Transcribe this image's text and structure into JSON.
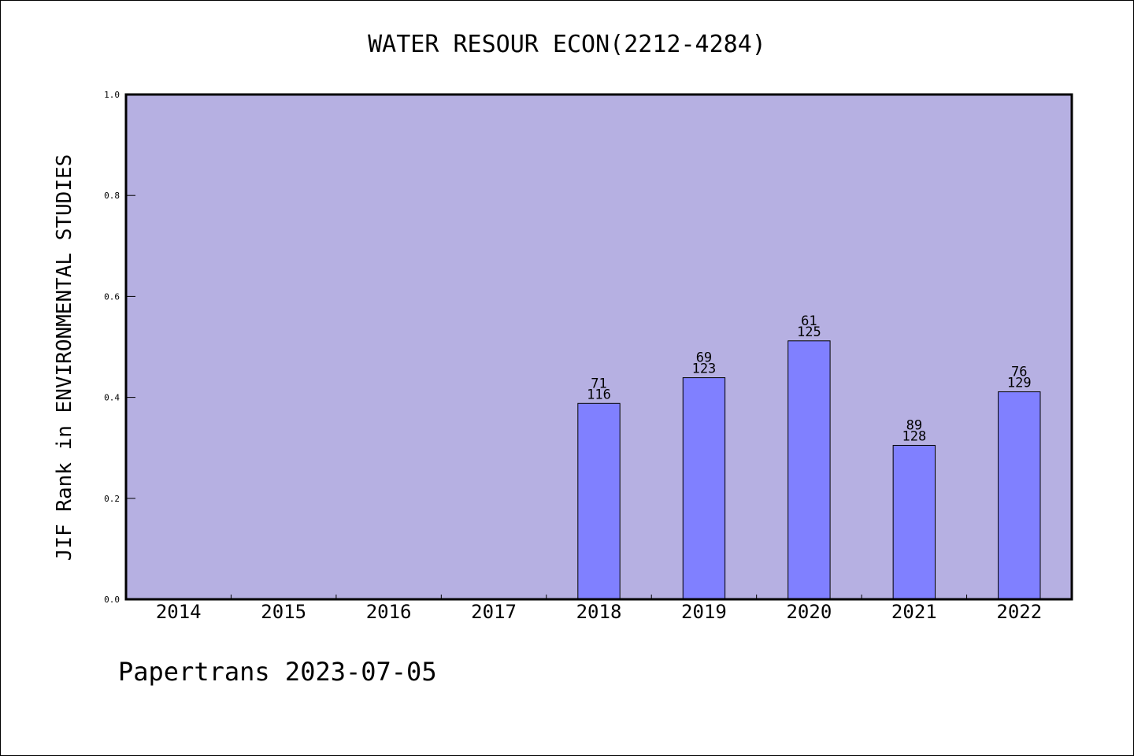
{
  "footer": {
    "text": "Papertrans 2023-07-05"
  },
  "chart_data": {
    "type": "bar",
    "title": "WATER RESOUR ECON(2212-4284)",
    "xlabel": "",
    "ylabel": "JIF Rank in ENVIRONMENTAL STUDIES",
    "categories": [
      "2014",
      "2015",
      "2016",
      "2017",
      "2018",
      "2019",
      "2020",
      "2021",
      "2022"
    ],
    "series": [
      {
        "values": [
          null,
          null,
          null,
          null,
          0.388,
          0.439,
          0.512,
          0.305,
          0.411
        ],
        "ranks": [
          "",
          "",
          "",
          "",
          "71",
          "69",
          "61",
          "89",
          "76"
        ],
        "totals": [
          "",
          "",
          "",
          "",
          "116",
          "123",
          "125",
          "128",
          "129"
        ]
      }
    ],
    "ylim": [
      0,
      1.0
    ],
    "yticks": [
      "0.0",
      "0.2",
      "0.4",
      "0.6",
      "0.8",
      "1.0"
    ],
    "grid": false,
    "legend": "none",
    "colors": {
      "plot_background": "#b6b0e2",
      "bar_fill": "#8080ff",
      "bar_stroke": "#000000"
    }
  }
}
